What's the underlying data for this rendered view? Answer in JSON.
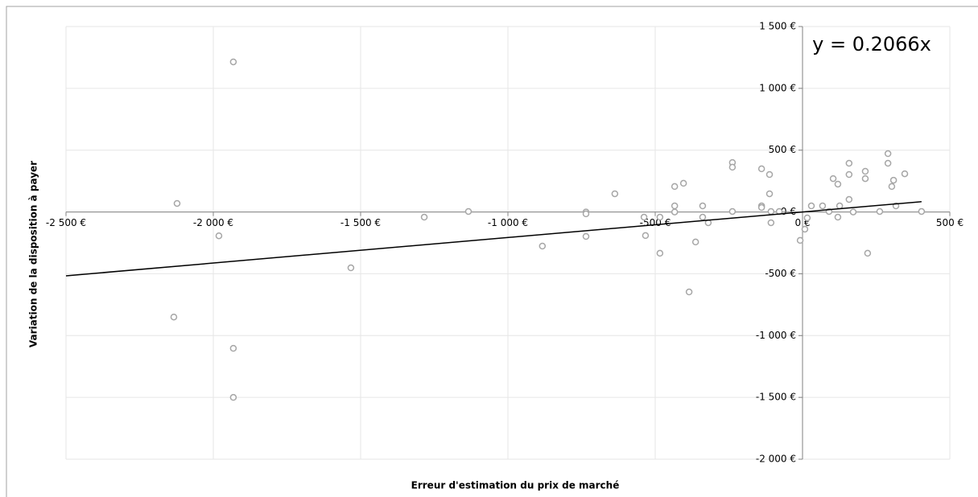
{
  "chart_data": {
    "type": "scatter",
    "x_label": "Erreur d'estimation du prix de marché",
    "y_label": "Variation de la disposition à payer",
    "annotation": "y = 0.2066x",
    "trendline_slope": 0.2066,
    "trendline_color": "#000000",
    "grid": true,
    "xlim": [
      -2500,
      500
    ],
    "ylim": [
      -2000,
      1500
    ],
    "xticks": [
      {
        "value": -2500,
        "label": "-2 500 €"
      },
      {
        "value": -2000,
        "label": "-2 000 €"
      },
      {
        "value": -1500,
        "label": "-1 500 €"
      },
      {
        "value": -1000,
        "label": "-1 000 €"
      },
      {
        "value": -500,
        "label": "-500 €"
      },
      {
        "value": 0,
        "label": "0 €"
      },
      {
        "value": 500,
        "label": "500 €"
      }
    ],
    "yticks": [
      {
        "value": -2000,
        "label": "-2 000 €"
      },
      {
        "value": -1500,
        "label": "-1 500 €"
      },
      {
        "value": -1000,
        "label": "-1 000 €"
      },
      {
        "value": -500,
        "label": "-500 €"
      },
      {
        "value": 0,
        "label": "0 €"
      },
      {
        "value": 500,
        "label": "500 €"
      },
      {
        "value": 1000,
        "label": "1 000 €"
      },
      {
        "value": 1500,
        "label": "1 500 €"
      }
    ],
    "series": [
      {
        "color": "#a6a6a6",
        "x": [
          -2123,
          -1981,
          -1932,
          -2134,
          -1932,
          -1932,
          -1533,
          -1284,
          -1134,
          -883,
          -735,
          -735,
          -735,
          -637,
          -538,
          -533,
          -484,
          -484,
          -434,
          -434,
          -434,
          -404,
          -385,
          -363,
          -339,
          -339,
          -320,
          -238,
          -238,
          -238,
          -139,
          -139,
          -139,
          -112,
          -112,
          -107,
          -107,
          -79,
          -8,
          8,
          16,
          30,
          68,
          90,
          104,
          120,
          120,
          126,
          158,
          158,
          158,
          172,
          213,
          213,
          221,
          262,
          290,
          290,
          303,
          309,
          317,
          347,
          404
        ],
        "values": [
          69,
          -193,
          1214,
          -850,
          -1103,
          -1500,
          -452,
          -42,
          4,
          -276,
          0,
          -15,
          -198,
          147,
          -42,
          -191,
          -334,
          -42,
          49,
          0,
          206,
          232,
          -647,
          -243,
          49,
          -42,
          -87,
          400,
          362,
          4,
          349,
          49,
          36,
          303,
          147,
          4,
          -87,
          4,
          -230,
          -139,
          -48,
          49,
          49,
          4,
          270,
          225,
          -42,
          49,
          101,
          394,
          303,
          0,
          329,
          270,
          -334,
          4,
          472,
          394,
          206,
          257,
          49,
          309,
          4
        ]
      }
    ]
  }
}
